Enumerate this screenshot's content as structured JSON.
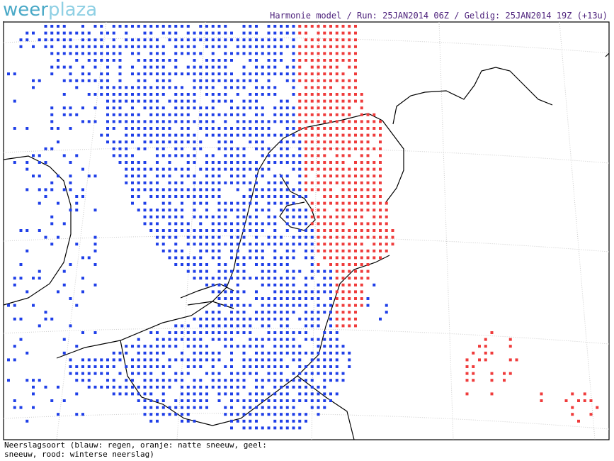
{
  "logo": {
    "part1": "weer",
    "part2": "plaza"
  },
  "header": "Harmonie model / Run: 25JAN2014 06Z / Geldig: 25JAN2014 19Z (+13u)",
  "legend": {
    "line1": "Neerslagsoort (blauw: regen, oranje: natte sneeuw, geel:",
    "line2": "sneeuw, rood: winterse neerslag)"
  }
}
